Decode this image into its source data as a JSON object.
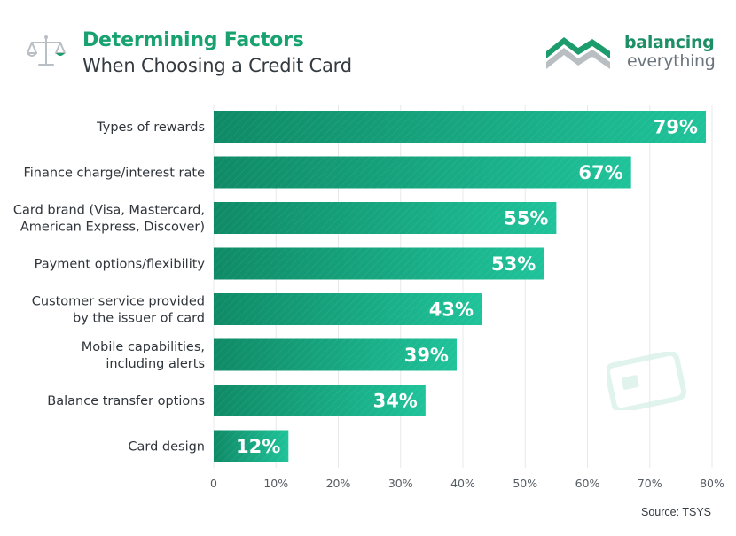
{
  "header": {
    "title": "Determining Factors",
    "subtitle": "When Choosing a Credit Card",
    "icon": "scales-icon"
  },
  "logo": {
    "line1": "balancing",
    "line2": "everything",
    "icon": "balancing-everything-logo"
  },
  "source": "Source: TSYS",
  "colors": {
    "accent": "#17a26f",
    "bar_dark": "#0f8a66",
    "bar_light": "#1fc39a"
  },
  "chart_data": {
    "type": "bar",
    "orientation": "horizontal",
    "categories": [
      [
        "Types of rewards"
      ],
      [
        "Finance charge/interest rate"
      ],
      [
        "Card brand (Visa, Mastercard,",
        "American Express, Discover)"
      ],
      [
        "Payment options/flexibility"
      ],
      [
        "Customer service provided",
        "by the issuer of card"
      ],
      [
        "Mobile capabilities,",
        "including alerts"
      ],
      [
        "Balance transfer options"
      ],
      [
        "Card design"
      ]
    ],
    "values": [
      79,
      67,
      55,
      53,
      43,
      39,
      34,
      12
    ],
    "value_labels": [
      "79%",
      "67%",
      "55%",
      "53%",
      "43%",
      "39%",
      "34%",
      "12%"
    ],
    "xlim": [
      0,
      80
    ],
    "ticks": [
      0,
      10,
      20,
      30,
      40,
      50,
      60,
      70,
      80
    ],
    "tick_labels": [
      "0",
      "10%",
      "20%",
      "30%",
      "40%",
      "50%",
      "60%",
      "70%",
      "80%"
    ],
    "grid": true
  }
}
